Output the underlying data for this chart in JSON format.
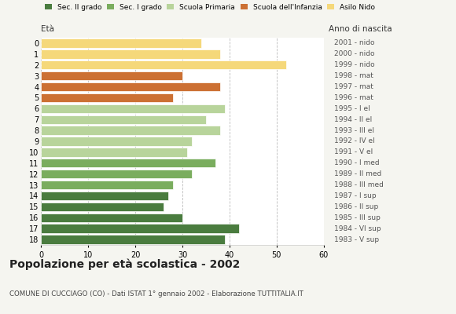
{
  "ages": [
    0,
    1,
    2,
    3,
    4,
    5,
    6,
    7,
    8,
    9,
    10,
    11,
    12,
    13,
    14,
    15,
    16,
    17,
    18
  ],
  "values": [
    34,
    38,
    52,
    30,
    38,
    28,
    39,
    35,
    38,
    32,
    31,
    37,
    32,
    28,
    27,
    26,
    30,
    42,
    39
  ],
  "right_labels": [
    "2001 - nido",
    "2000 - nido",
    "1999 - nido",
    "1998 - mat",
    "1997 - mat",
    "1996 - mat",
    "1995 - I el",
    "1994 - II el",
    "1993 - III el",
    "1992 - IV el",
    "1991 - V el",
    "1990 - I med",
    "1989 - II med",
    "1988 - III med",
    "1987 - I sup",
    "1986 - II sup",
    "1985 - III sup",
    "1984 - VI sup",
    "1983 - V sup"
  ],
  "colors": [
    "#f5d87a",
    "#f5d87a",
    "#f5d87a",
    "#cc7033",
    "#cc7033",
    "#cc7033",
    "#b8d49b",
    "#b8d49b",
    "#b8d49b",
    "#b8d49b",
    "#b8d49b",
    "#7aad5e",
    "#7aad5e",
    "#7aad5e",
    "#4a7c3f",
    "#4a7c3f",
    "#4a7c3f",
    "#4a7c3f",
    "#4a7c3f"
  ],
  "legend_labels": [
    "Sec. II grado",
    "Sec. I grado",
    "Scuola Primaria",
    "Scuola dell'Infanzia",
    "Asilo Nido"
  ],
  "legend_colors": [
    "#4a7c3f",
    "#7aad5e",
    "#b8d49b",
    "#cc7033",
    "#f5d87a"
  ],
  "title": "Popolazione per età scolastica - 2002",
  "subtitle": "COMUNE DI CUCCIAGO (CO) - Dati ISTAT 1° gennaio 2002 - Elaborazione TUTTITALIA.IT",
  "eta_label": "Età",
  "anno_label": "Anno di nascita",
  "xlim": [
    0,
    60
  ],
  "xticks": [
    0,
    10,
    20,
    30,
    40,
    50,
    60
  ],
  "bg_color": "#f5f5f0",
  "bar_bg_color": "#ffffff",
  "grid_color": "#bbbbbb"
}
